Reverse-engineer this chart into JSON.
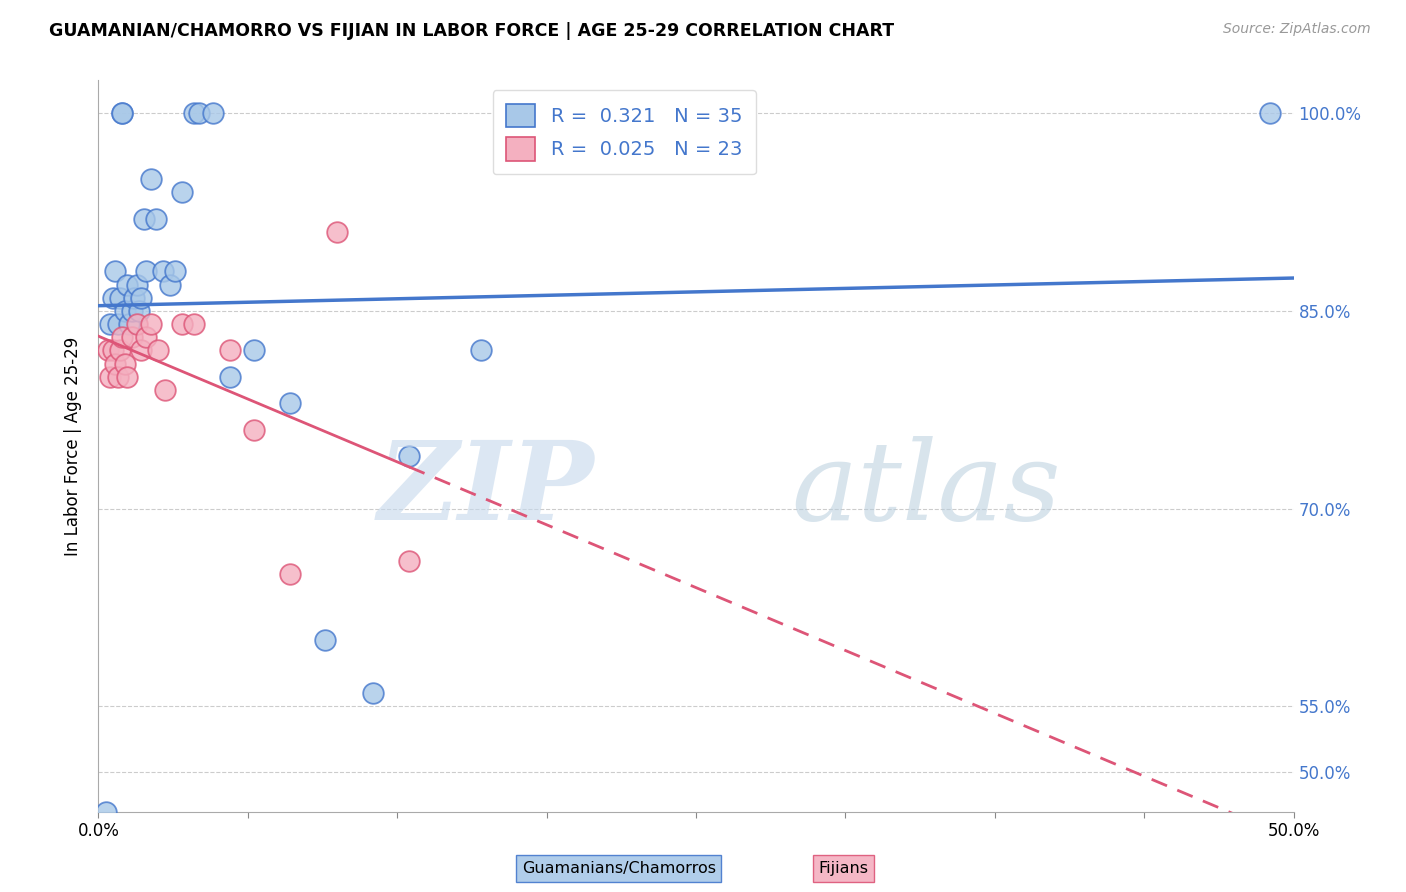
{
  "title": "GUAMANIAN/CHAMORRO VS FIJIAN IN LABOR FORCE | AGE 25-29 CORRELATION CHART",
  "source": "Source: ZipAtlas.com",
  "ylabel": "In Labor Force | Age 25-29",
  "xlim": [
    0.0,
    0.5
  ],
  "ylim": [
    0.47,
    1.025
  ],
  "yticks": [
    0.5,
    0.55,
    0.7,
    0.85,
    1.0
  ],
  "ytick_labels": [
    "50.0%",
    "55.0%",
    "70.0%",
    "85.0%",
    "100.0%"
  ],
  "xticks": [
    0.0,
    0.0625,
    0.125,
    0.1875,
    0.25,
    0.3125,
    0.375,
    0.4375,
    0.5
  ],
  "R_blue": 0.321,
  "N_blue": 35,
  "R_pink": 0.025,
  "N_pink": 23,
  "blue_color": "#a8c8e8",
  "pink_color": "#f4b0c0",
  "line_blue": "#4477cc",
  "line_pink": "#dd5577",
  "legend_label_blue": "Guamanians/Chamorros",
  "legend_label_pink": "Fijians",
  "blue_scatter_x": [
    0.003,
    0.005,
    0.006,
    0.007,
    0.008,
    0.009,
    0.01,
    0.01,
    0.011,
    0.012,
    0.013,
    0.014,
    0.015,
    0.016,
    0.017,
    0.018,
    0.019,
    0.02,
    0.022,
    0.024,
    0.027,
    0.03,
    0.032,
    0.035,
    0.04,
    0.042,
    0.048,
    0.055,
    0.065,
    0.08,
    0.095,
    0.115,
    0.13,
    0.16,
    0.49
  ],
  "blue_scatter_y": [
    0.47,
    0.84,
    0.86,
    0.88,
    0.84,
    0.86,
    1.0,
    1.0,
    0.85,
    0.87,
    0.84,
    0.85,
    0.86,
    0.87,
    0.85,
    0.86,
    0.92,
    0.88,
    0.95,
    0.92,
    0.88,
    0.87,
    0.88,
    0.94,
    1.0,
    1.0,
    1.0,
    0.8,
    0.82,
    0.78,
    0.6,
    0.56,
    0.74,
    0.82,
    1.0
  ],
  "pink_scatter_x": [
    0.004,
    0.005,
    0.006,
    0.007,
    0.008,
    0.009,
    0.01,
    0.011,
    0.012,
    0.014,
    0.016,
    0.018,
    0.02,
    0.022,
    0.025,
    0.028,
    0.035,
    0.04,
    0.055,
    0.065,
    0.08,
    0.1,
    0.13
  ],
  "pink_scatter_y": [
    0.82,
    0.8,
    0.82,
    0.81,
    0.8,
    0.82,
    0.83,
    0.81,
    0.8,
    0.83,
    0.84,
    0.82,
    0.83,
    0.84,
    0.82,
    0.79,
    0.84,
    0.84,
    0.82,
    0.76,
    0.65,
    0.91,
    0.66
  ]
}
